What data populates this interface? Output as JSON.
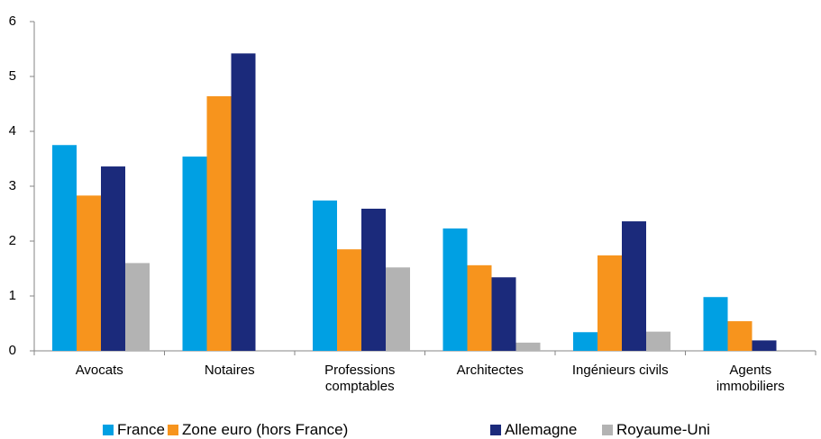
{
  "chart_data": {
    "type": "bar",
    "categories": [
      "Avocats",
      "Notaires",
      "Professions\ncomptables",
      "Architectes",
      "Ingénieurs civils",
      "Agents\nimmobiliers"
    ],
    "series": [
      {
        "name": "France",
        "color": "#00a0e3",
        "values": [
          3.75,
          3.54,
          2.74,
          2.23,
          0.34,
          0.98
        ]
      },
      {
        "name": "Zone euro (hors France)",
        "color": "#f7941d",
        "values": [
          2.83,
          4.64,
          1.85,
          1.56,
          1.74,
          0.54
        ]
      },
      {
        "name": "Allemagne",
        "color": "#1b2a7b",
        "values": [
          3.36,
          5.42,
          2.59,
          1.34,
          2.36,
          0.19
        ]
      },
      {
        "name": "Royaume-Uni",
        "color": "#b3b3b3",
        "values": [
          1.6,
          null,
          1.52,
          0.15,
          0.35,
          null
        ]
      }
    ],
    "ylim": [
      0,
      6
    ],
    "yticks": [
      0,
      1,
      2,
      3,
      4,
      5,
      6
    ],
    "grid": false,
    "legend": "bottom"
  }
}
